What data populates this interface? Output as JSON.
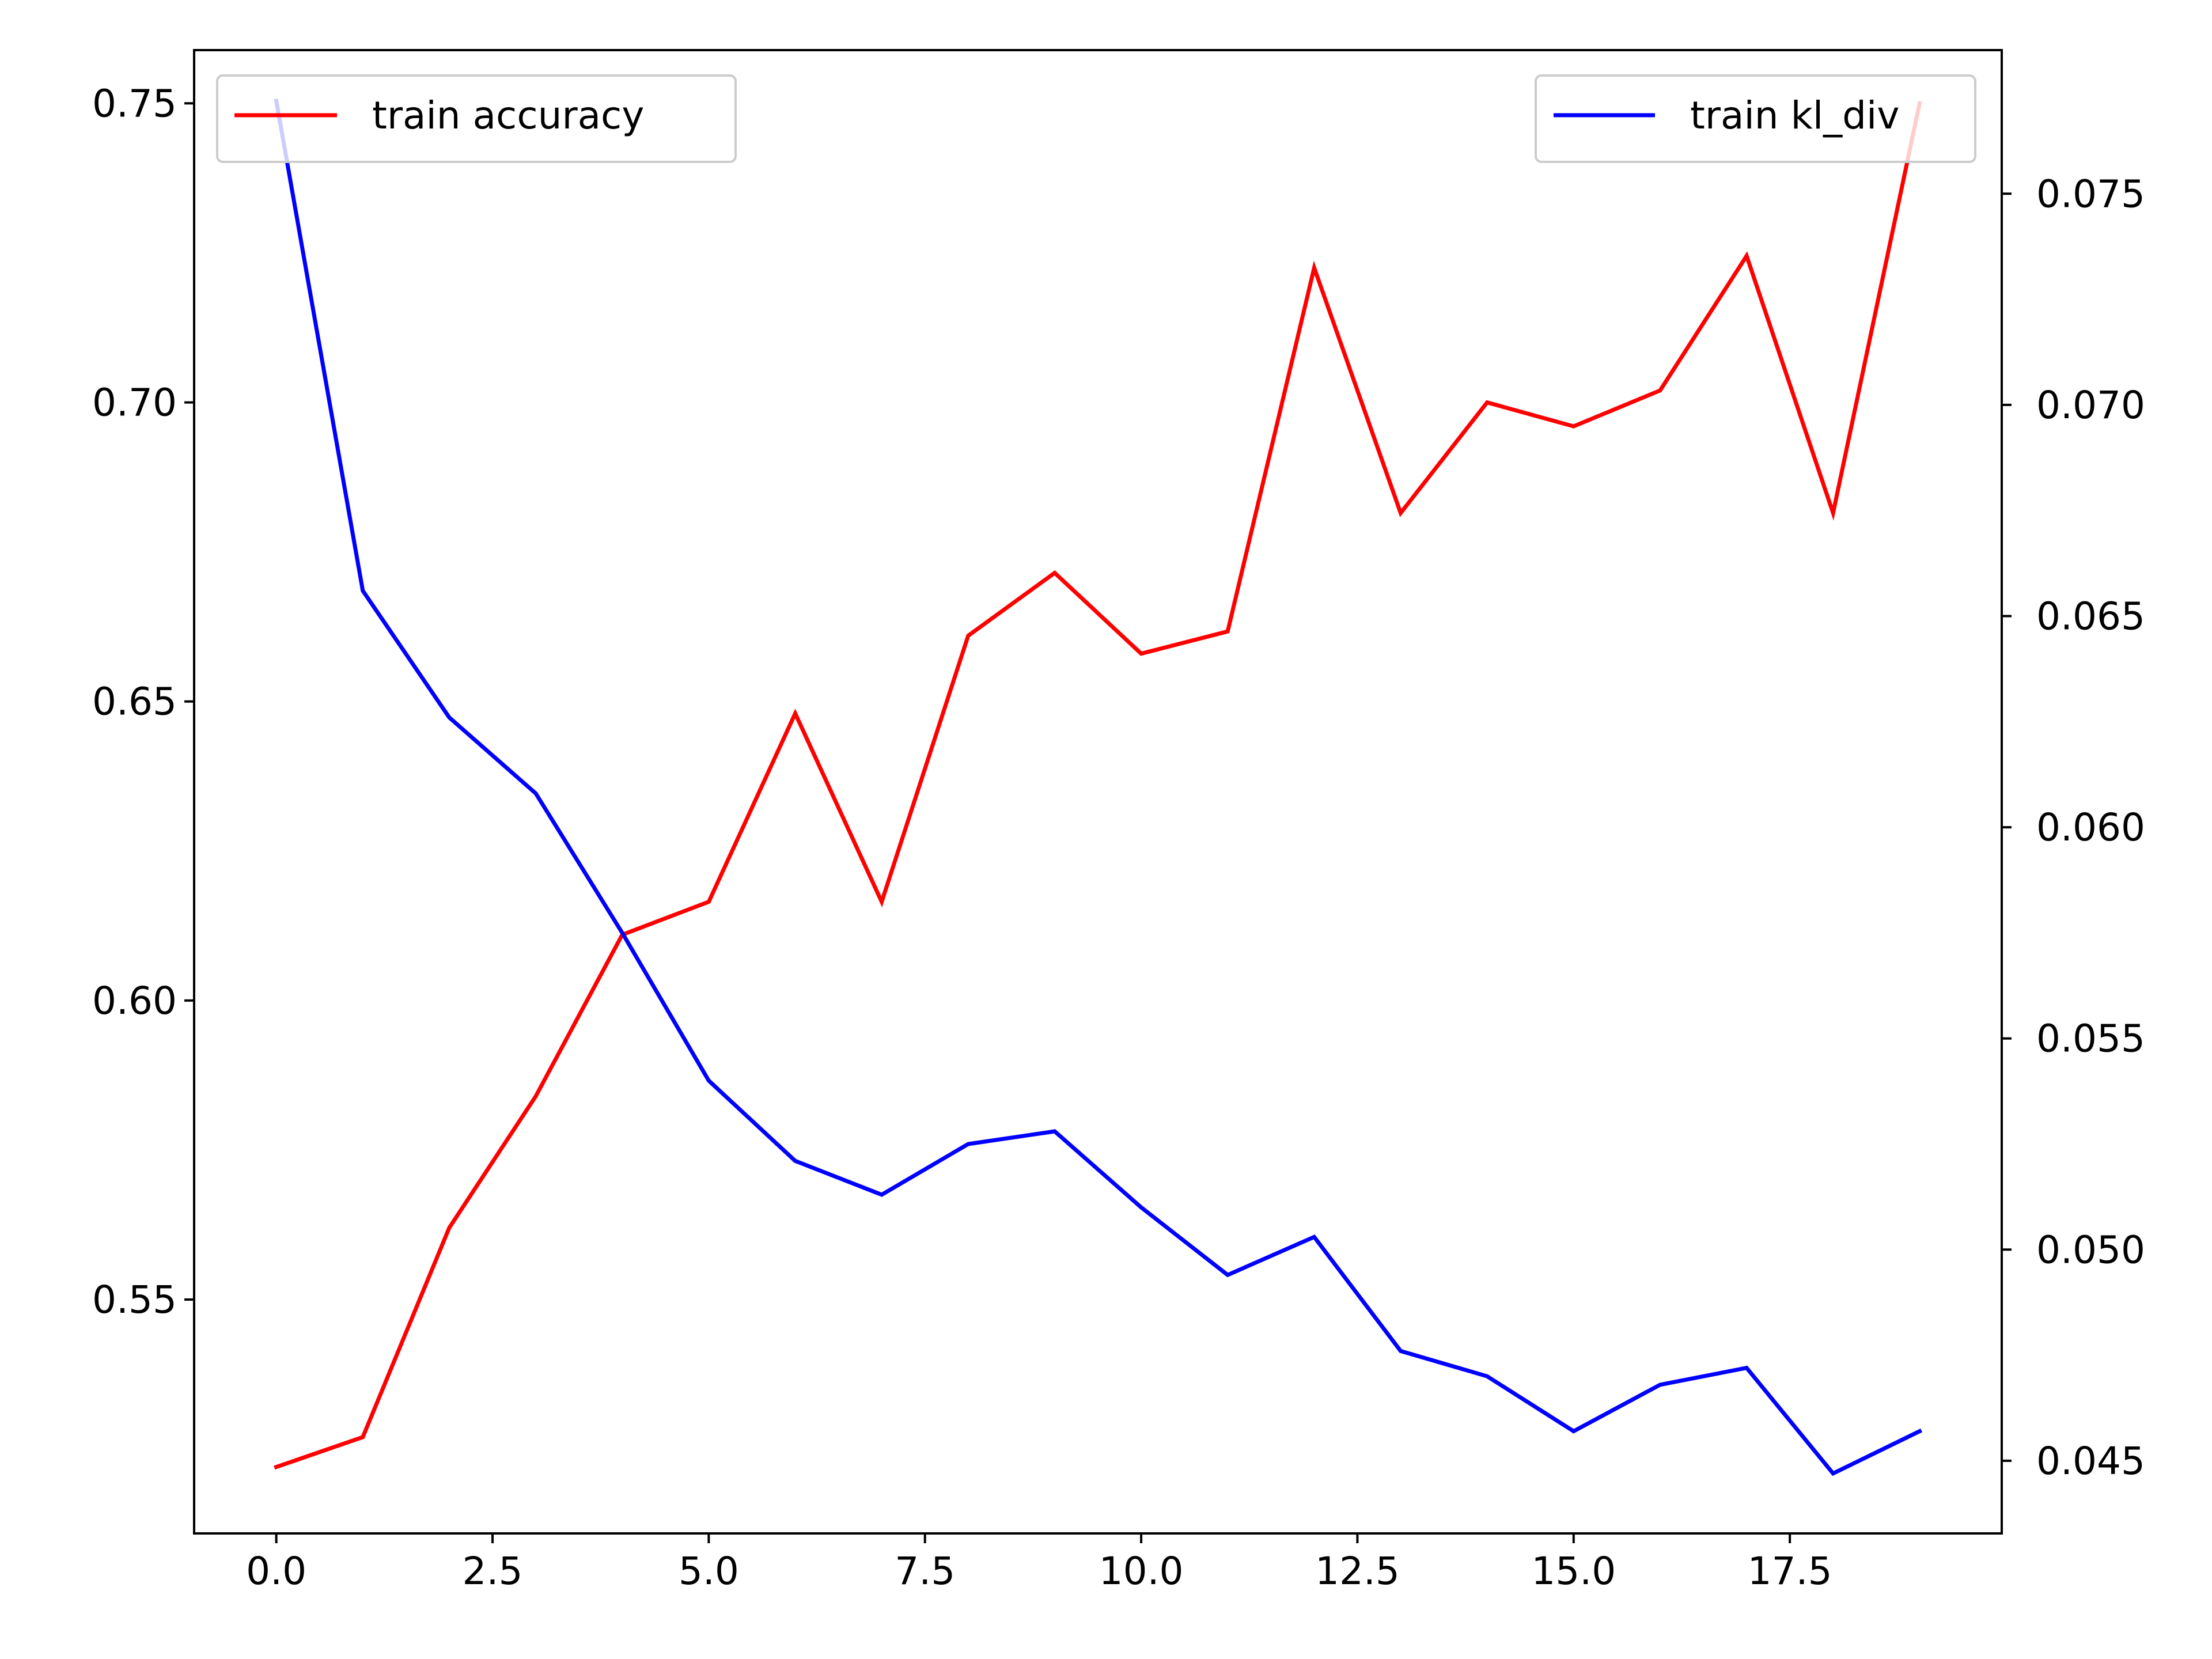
{
  "chart_data": {
    "type": "line",
    "title": "",
    "xlabel": "",
    "ylabel_left": "",
    "ylabel_right": "",
    "x": [
      0,
      1,
      2,
      3,
      4,
      5,
      6,
      7,
      8,
      9,
      10,
      11,
      12,
      13,
      14,
      15,
      16,
      17,
      18,
      19
    ],
    "xlim": [
      -0.95,
      19.95
    ],
    "xticks": [
      0.0,
      2.5,
      5.0,
      7.5,
      10.0,
      12.5,
      15.0,
      17.5
    ],
    "xtick_labels": [
      "0.0",
      "2.5",
      "5.0",
      "7.5",
      "10.0",
      "12.5",
      "15.0",
      "17.5"
    ],
    "left_axis": {
      "ylim": [
        0.5109,
        0.7589
      ],
      "ticks": [
        0.55,
        0.6,
        0.65,
        0.7,
        0.75
      ],
      "tick_labels": [
        "0.55",
        "0.60",
        "0.65",
        "0.70",
        "0.75"
      ]
    },
    "right_axis": {
      "ylim": [
        0.04328,
        0.0784
      ],
      "ticks": [
        0.045,
        0.05,
        0.055,
        0.06,
        0.065,
        0.07,
        0.075
      ],
      "tick_labels": [
        "0.045",
        "0.050",
        "0.055",
        "0.060",
        "0.065",
        "0.070",
        "0.075"
      ]
    },
    "series": [
      {
        "name": "train accuracy",
        "axis": "left",
        "color": "#ff0000",
        "values": [
          0.522,
          0.527,
          0.562,
          0.584,
          0.611,
          0.6165,
          0.648,
          0.6165,
          0.661,
          0.6715,
          0.658,
          0.6617,
          0.7225,
          0.6815,
          0.7,
          0.696,
          0.702,
          0.7245,
          0.6815,
          0.75
        ]
      },
      {
        "name": "train kl_div",
        "axis": "right",
        "color": "#0000ff",
        "values": [
          0.0772,
          0.0656,
          0.0626,
          0.0608,
          0.0575,
          0.054,
          0.0521,
          0.0513,
          0.0525,
          0.0528,
          0.051,
          0.0494,
          0.0503,
          0.0476,
          0.047,
          0.0457,
          0.0468,
          0.0472,
          0.0447,
          0.0457
        ]
      }
    ],
    "legends": [
      {
        "placement": "upper left",
        "entries": [
          "train accuracy"
        ]
      },
      {
        "placement": "upper right",
        "entries": [
          "train kl_div"
        ]
      }
    ],
    "grid": false
  }
}
